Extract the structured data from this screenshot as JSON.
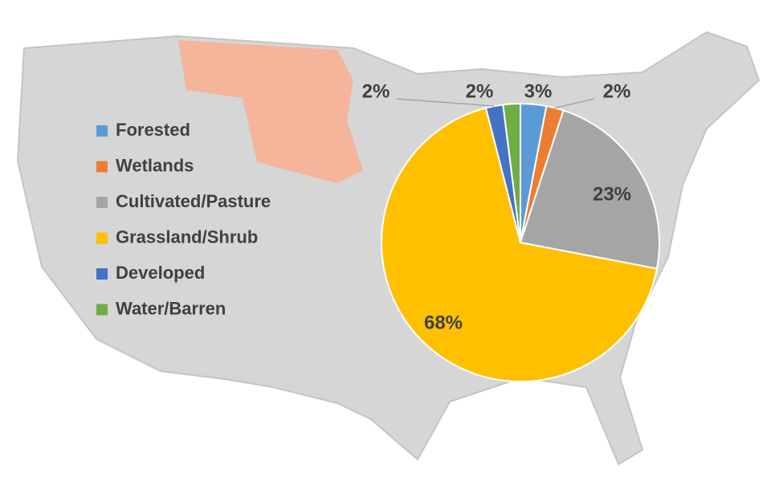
{
  "chart_data": {
    "type": "pie",
    "categories": [
      "Forested",
      "Wetlands",
      "Cultivated/Pasture",
      "Grassland/Shrub",
      "Developed",
      "Water/Barren"
    ],
    "values": [
      3,
      2,
      23,
      68,
      2,
      2
    ],
    "value_labels": [
      "3%",
      "2%",
      "23%",
      "68%",
      "2%",
      "2%"
    ],
    "colors": [
      "#5b9bd5",
      "#ed7d31",
      "#a5a5a5",
      "#ffc000",
      "#4472c4",
      "#70ad47"
    ]
  }
}
